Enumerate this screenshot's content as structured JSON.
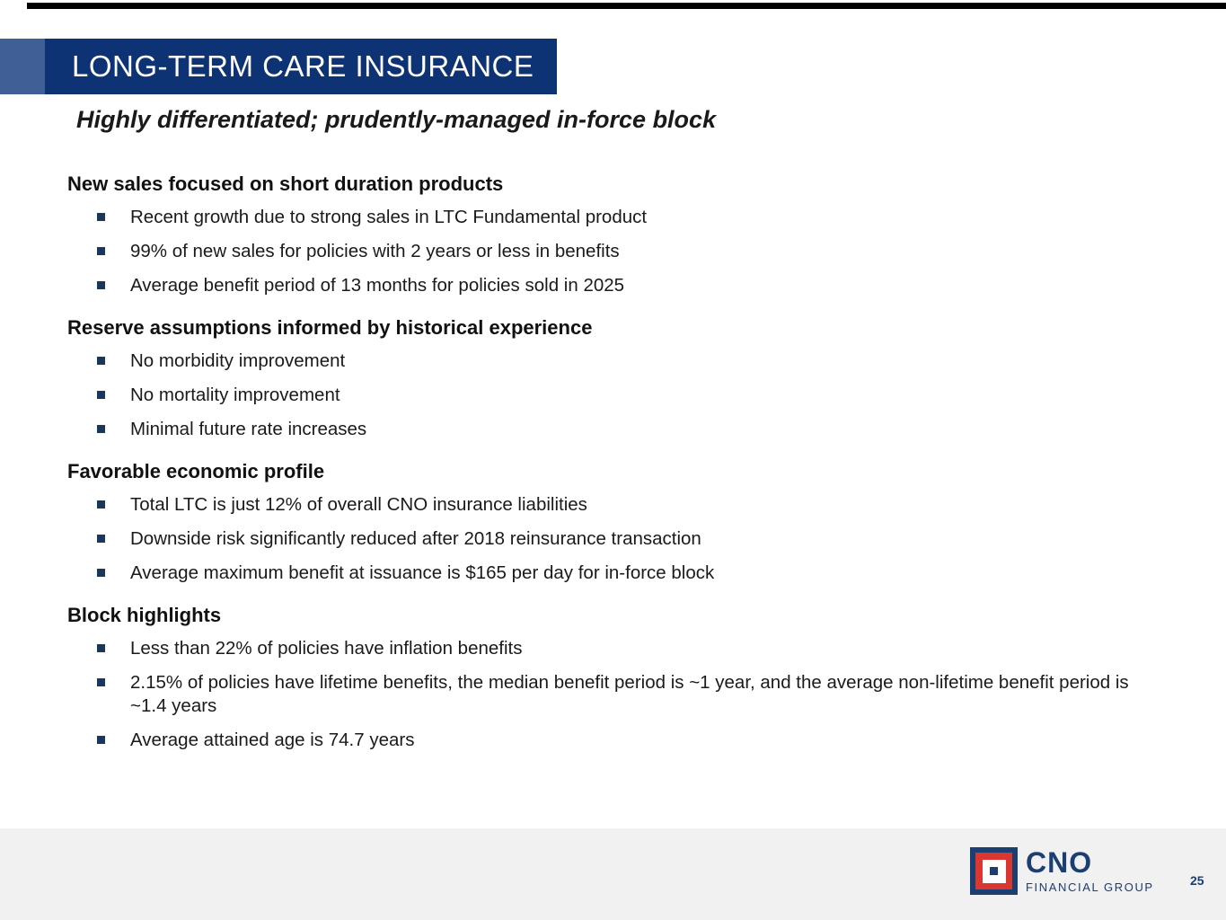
{
  "slide": {
    "title": "LONG-TERM CARE INSURANCE",
    "subtitle": "Highly differentiated; prudently-managed in-force block",
    "page_number": "25"
  },
  "sections": [
    {
      "heading": "New sales focused on short duration products",
      "bullets": [
        "Recent growth due to strong sales in LTC Fundamental product",
        "99% of new sales for policies with 2 years or less in benefits",
        "Average benefit period of 13 months for policies sold in 2025"
      ]
    },
    {
      "heading": "Reserve assumptions informed by historical experience",
      "bullets": [
        "No morbidity improvement",
        "No mortality improvement",
        "Minimal future rate increases"
      ]
    },
    {
      "heading": "Favorable economic profile",
      "bullets": [
        "Total LTC is just 12% of overall CNO insurance liabilities",
        "Downside risk significantly reduced after 2018 reinsurance transaction",
        "Average maximum benefit at issuance is $165 per day for in-force block"
      ]
    },
    {
      "heading": "Block highlights",
      "bullets": [
        "Less than 22% of policies have inflation benefits",
        "2.15% of policies have lifetime benefits, the median benefit period is ~1 year, and the average non-lifetime benefit period is ~1.4 years",
        "Average attained age is 74.7 years"
      ]
    }
  ],
  "footer": {
    "logo_name": "CNO",
    "logo_subtext": "FINANCIAL GROUP"
  },
  "icons": {
    "bullet": "square-bullet-icon",
    "logo": "cno-logo-mark"
  },
  "colors": {
    "banner_navy": "#0d3374",
    "accent_blue": "#415f97",
    "bullet_navy": "#17375e",
    "logo_navy": "#1c3e70",
    "logo_red": "#d9372f",
    "footer_gray": "#f1f1f1",
    "body_text": "#1a1a1a",
    "top_bar_black": "#000000"
  }
}
